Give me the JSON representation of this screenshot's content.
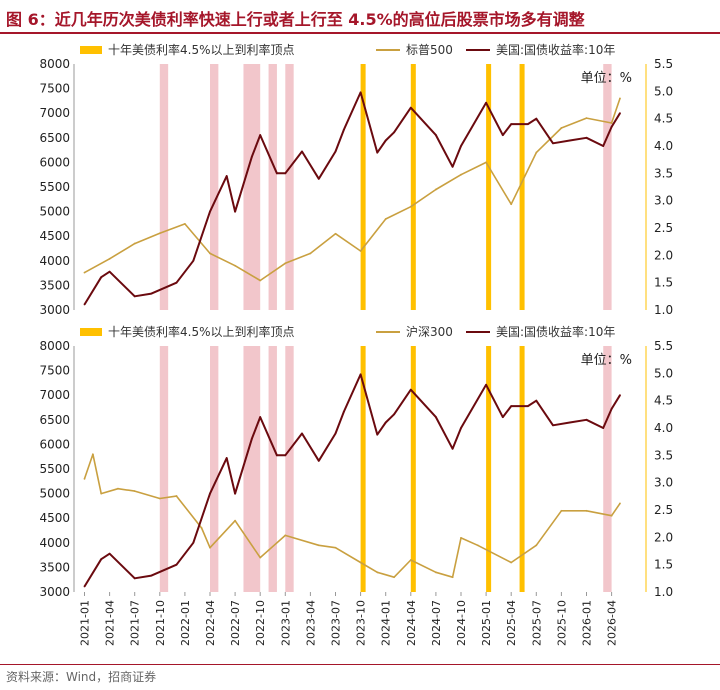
{
  "title": "图 6：近几年历次美债利率快速上行或者上行至 4.5%的高位后股票市场多有调整",
  "source": "资料来源：Wind，招商证券",
  "colors": {
    "title": "#a5162a",
    "peak_bar": "#ffc000",
    "shade": "#f2c6cb",
    "index_line": "#c9a040",
    "yield_line": "#6b0a0f"
  },
  "chart_data": [
    {
      "type": "line",
      "legend": [
        "十年美债利率4.5%以上到利率顶点",
        "标普500",
        "美国:国债收益率:10年"
      ],
      "unit_label": "单位：%",
      "ylim_left": [
        3000,
        8000
      ],
      "yticks_left": [
        3000,
        3500,
        4000,
        4500,
        5000,
        5500,
        6000,
        6500,
        7000,
        7500,
        8000
      ],
      "ylim_right": [
        1.0,
        5.5
      ],
      "yticks_right": [
        "1.0",
        "1.5",
        "2.0",
        "2.5",
        "3.0",
        "3.5",
        "4.0",
        "4.5",
        "5.0",
        "5.5"
      ],
      "series": [
        {
          "name": "标普500",
          "axis": "left",
          "x": [
            "2021-01",
            "2021-04",
            "2021-07",
            "2021-10",
            "2022-01",
            "2022-04",
            "2022-07",
            "2022-10",
            "2023-01",
            "2023-04",
            "2023-07",
            "2023-10",
            "2024-01",
            "2024-04",
            "2024-07",
            "2024-10",
            "2025-01",
            "2025-04",
            "2025-07",
            "2025-10",
            "2026-01",
            "2026-04",
            "2026-05"
          ],
          "values": [
            3760,
            4040,
            4350,
            4560,
            4750,
            4150,
            3900,
            3600,
            3950,
            4150,
            4550,
            4200,
            4850,
            5100,
            5450,
            5750,
            6000,
            5150,
            6200,
            6700,
            6900,
            6800,
            7300
          ]
        },
        {
          "name": "美国:国债收益率:10年",
          "axis": "right",
          "x": [
            "2021-01",
            "2021-03",
            "2021-04",
            "2021-07",
            "2021-09",
            "2021-12",
            "2022-02",
            "2022-04",
            "2022-06",
            "2022-07",
            "2022-09",
            "2022-10",
            "2022-12",
            "2023-01",
            "2023-03",
            "2023-05",
            "2023-07",
            "2023-08",
            "2023-10",
            "2023-12",
            "2024-01",
            "2024-02",
            "2024-04",
            "2024-07",
            "2024-09",
            "2024-10",
            "2025-01",
            "2025-03",
            "2025-04",
            "2025-06",
            "2025-07",
            "2025-09",
            "2025-11",
            "2026-01",
            "2026-03",
            "2026-04",
            "2026-05"
          ],
          "values": [
            1.1,
            1.6,
            1.7,
            1.25,
            1.3,
            1.5,
            1.9,
            2.8,
            3.45,
            2.8,
            3.8,
            4.2,
            3.5,
            3.5,
            3.9,
            3.4,
            3.9,
            4.3,
            4.98,
            3.88,
            4.1,
            4.25,
            4.7,
            4.2,
            3.62,
            4.0,
            4.79,
            4.2,
            4.4,
            4.4,
            4.5,
            4.05,
            4.1,
            4.15,
            4.0,
            4.35,
            4.6
          ]
        }
      ]
    },
    {
      "type": "line",
      "legend": [
        "十年美债利率4.5%以上到利率顶点",
        "沪深300",
        "美国:国债收益率:10年"
      ],
      "unit_label": "单位：%",
      "ylim_left": [
        3000,
        8000
      ],
      "yticks_left": [
        3000,
        3500,
        4000,
        4500,
        5000,
        5500,
        6000,
        6500,
        7000,
        7500,
        8000
      ],
      "ylim_right": [
        1.0,
        5.5
      ],
      "yticks_right": [
        "1.0",
        "1.5",
        "2.0",
        "2.5",
        "3.0",
        "3.5",
        "4.0",
        "4.5",
        "5.0",
        "5.5"
      ],
      "xticks": [
        "2021-01",
        "2021-04",
        "2021-07",
        "2021-10",
        "2022-01",
        "2022-04",
        "2022-07",
        "2022-10",
        "2023-01",
        "2023-04",
        "2023-07",
        "2023-10",
        "2024-01",
        "2024-04",
        "2024-07",
        "2024-10",
        "2025-01",
        "2025-04",
        "2025-07",
        "2025-10",
        "2026-01",
        "2026-04"
      ],
      "series": [
        {
          "name": "沪深300",
          "axis": "left",
          "x": [
            "2021-01",
            "2021-02",
            "2021-03",
            "2021-05",
            "2021-07",
            "2021-10",
            "2021-12",
            "2022-03",
            "2022-04",
            "2022-07",
            "2022-10",
            "2022-11",
            "2023-01",
            "2023-05",
            "2023-07",
            "2023-10",
            "2023-12",
            "2024-02",
            "2024-04",
            "2024-07",
            "2024-09",
            "2024-10",
            "2024-12",
            "2025-04",
            "2025-07",
            "2025-10",
            "2026-01",
            "2026-04",
            "2026-05"
          ],
          "values": [
            5300,
            5800,
            5000,
            5100,
            5050,
            4900,
            4950,
            4300,
            3900,
            4450,
            3700,
            3850,
            4150,
            3950,
            3900,
            3600,
            3400,
            3300,
            3650,
            3400,
            3300,
            4100,
            3950,
            3600,
            3950,
            4650,
            4650,
            4550,
            4800
          ]
        },
        {
          "name": "美国:国债收益率:10年",
          "axis": "right",
          "x": [
            "2021-01",
            "2021-03",
            "2021-04",
            "2021-07",
            "2021-09",
            "2021-12",
            "2022-02",
            "2022-04",
            "2022-06",
            "2022-07",
            "2022-09",
            "2022-10",
            "2022-12",
            "2023-01",
            "2023-03",
            "2023-05",
            "2023-07",
            "2023-08",
            "2023-10",
            "2023-12",
            "2024-01",
            "2024-02",
            "2024-04",
            "2024-07",
            "2024-09",
            "2024-10",
            "2025-01",
            "2025-03",
            "2025-04",
            "2025-06",
            "2025-07",
            "2025-09",
            "2025-11",
            "2026-01",
            "2026-03",
            "2026-04",
            "2026-05"
          ],
          "values": [
            1.1,
            1.6,
            1.7,
            1.25,
            1.3,
            1.5,
            1.9,
            2.8,
            3.45,
            2.8,
            3.8,
            4.2,
            3.5,
            3.5,
            3.9,
            3.4,
            3.9,
            4.3,
            4.98,
            3.88,
            4.1,
            4.25,
            4.7,
            4.2,
            3.62,
            4.0,
            4.79,
            4.2,
            4.4,
            4.4,
            4.5,
            4.05,
            4.1,
            4.15,
            4.0,
            4.35,
            4.6
          ]
        }
      ],
      "bands": {
        "shaded_months": [
          [
            "2021-10",
            "2021-11"
          ],
          [
            "2022-04",
            "2022-05"
          ],
          [
            "2022-08",
            "2022-10"
          ],
          [
            "2022-11",
            "2022-12"
          ],
          [
            "2023-01",
            "2023-02"
          ],
          [
            "2026-03",
            "2026-04"
          ]
        ],
        "peak_months": [
          [
            "2023-10",
            "2023-11"
          ],
          [
            "2024-04",
            "2024-05"
          ],
          [
            "2025-01",
            "2025-02"
          ],
          [
            "2025-05",
            "2025-06"
          ]
        ]
      }
    }
  ]
}
